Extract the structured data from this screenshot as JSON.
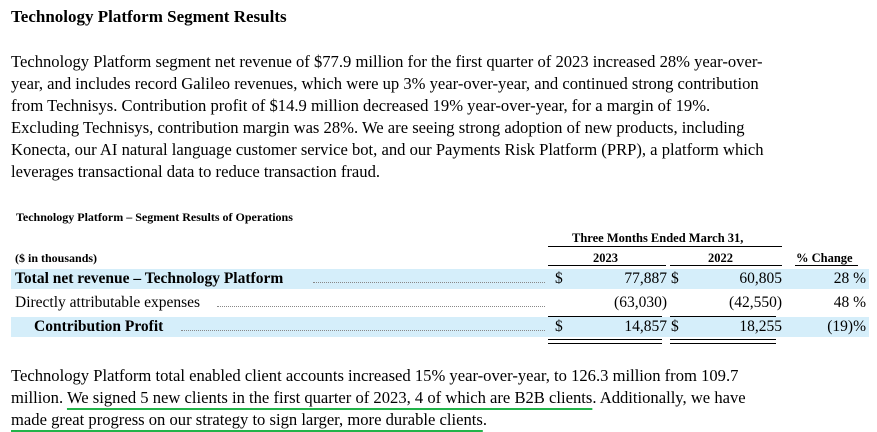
{
  "heading": "Technology Platform Segment Results",
  "intro_lines": [
    "Technology Platform segment net revenue of $77.9 million for the first quarter of 2023 increased 28% year-over-",
    "year, and includes record Galileo revenues, which were up 3% year-over-year, and continued strong contribution",
    "from Technisys. Contribution profit of $14.9 million decreased 19% year-over-year, for a margin of 19%.",
    "Excluding Technisys, contribution margin was 28%. We are seeing strong adoption of new products, including",
    "Konecta, our AI natural language customer service bot, and our Payments Risk Platform (PRP), a platform which",
    "leverages transactional data to reduce transaction fraud."
  ],
  "table": {
    "title": "Technology Platform – Segment Results of Operations",
    "period_header": "Three Months Ended March 31,",
    "year_1": "2023",
    "year_2": "2022",
    "units_label": "($ in thousands)",
    "pct_header": "% Change",
    "rows": [
      {
        "label": "Total net revenue – Technology Platform",
        "cur1": "$",
        "v2023": "77,887",
        "cur2": "$",
        "v2022": "60,805",
        "pct": "28 %"
      },
      {
        "label": "Directly attributable expenses",
        "cur1": "",
        "v2023": "(63,030)",
        "cur2": "",
        "v2022": "(42,550)",
        "pct": "48 %"
      },
      {
        "label": "Contribution Profit",
        "cur1": "$",
        "v2023": "14,857",
        "cur2": "$",
        "v2022": "18,255",
        "pct": "(19)%"
      }
    ]
  },
  "closing": {
    "line1": "Technology Platform total enabled client accounts increased 15% year-over-year, to 126.3 million from 109.7",
    "line2_pre": "million. ",
    "line2_ul": "We signed 5 new clients in the first quarter of 2023, 4 of which are B2B clients",
    "line2_post": ". Additionally, we have",
    "line3_ul": "made great progress on our strategy to sign larger, more durable clients",
    "line3_post": "."
  },
  "colors": {
    "row_highlight": "#d5eefa",
    "underline": "#22b34a"
  }
}
